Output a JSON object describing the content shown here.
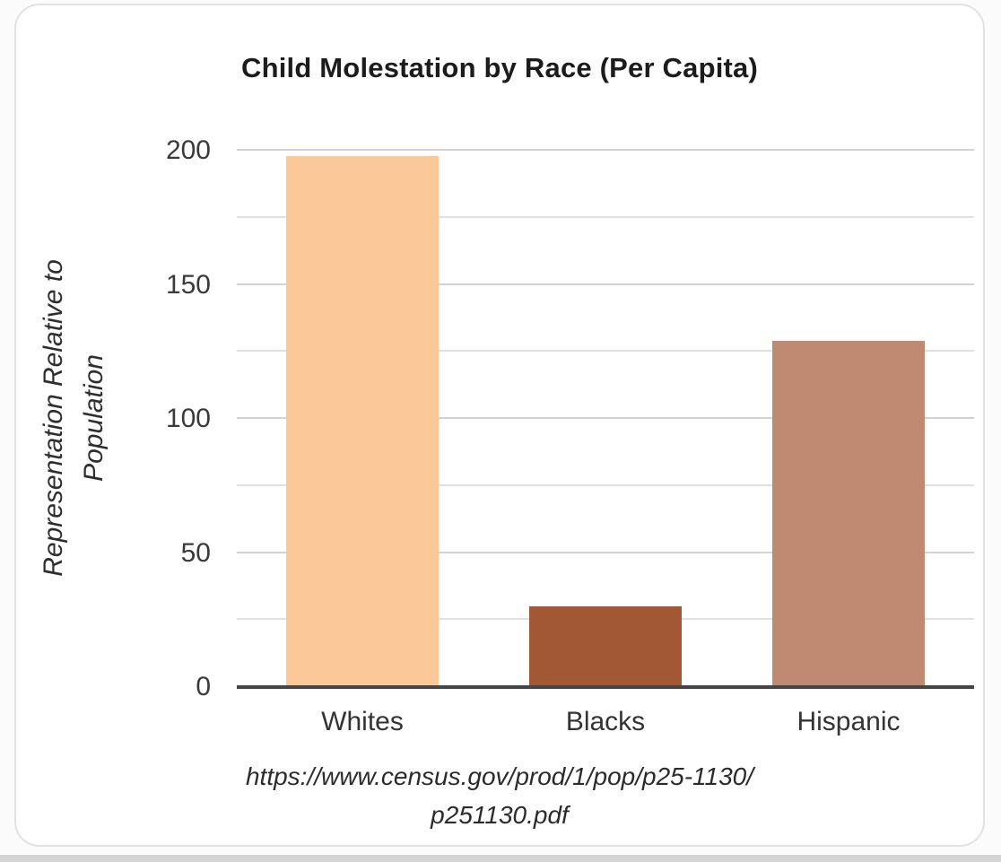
{
  "chart_data": {
    "type": "bar",
    "title": "Child Molestation by Race (Per Capita)",
    "categories": [
      "Whites",
      "Blacks",
      "Hispanic"
    ],
    "values": [
      198,
      30,
      129
    ],
    "bar_colors": [
      "#fac997",
      "#a25834",
      "#bf8972"
    ],
    "ylabel": "Representation Relative to Population",
    "ylabel_lines": [
      "Representation Relative to",
      "Population"
    ],
    "xlabel": "",
    "ylim": [
      0,
      200
    ],
    "ytick_step": 50,
    "gridline_step": 25,
    "grid": true,
    "legend": false,
    "source_lines": [
      "https://www.census.gov/prod/1/pop/p25-1130/",
      "p251130.pdf"
    ],
    "source": "https://www.census.gov/prod/1/pop/p25-1130/p251130.pdf"
  },
  "page": {
    "title": "Child Molestation by Race (Per Capita)"
  }
}
